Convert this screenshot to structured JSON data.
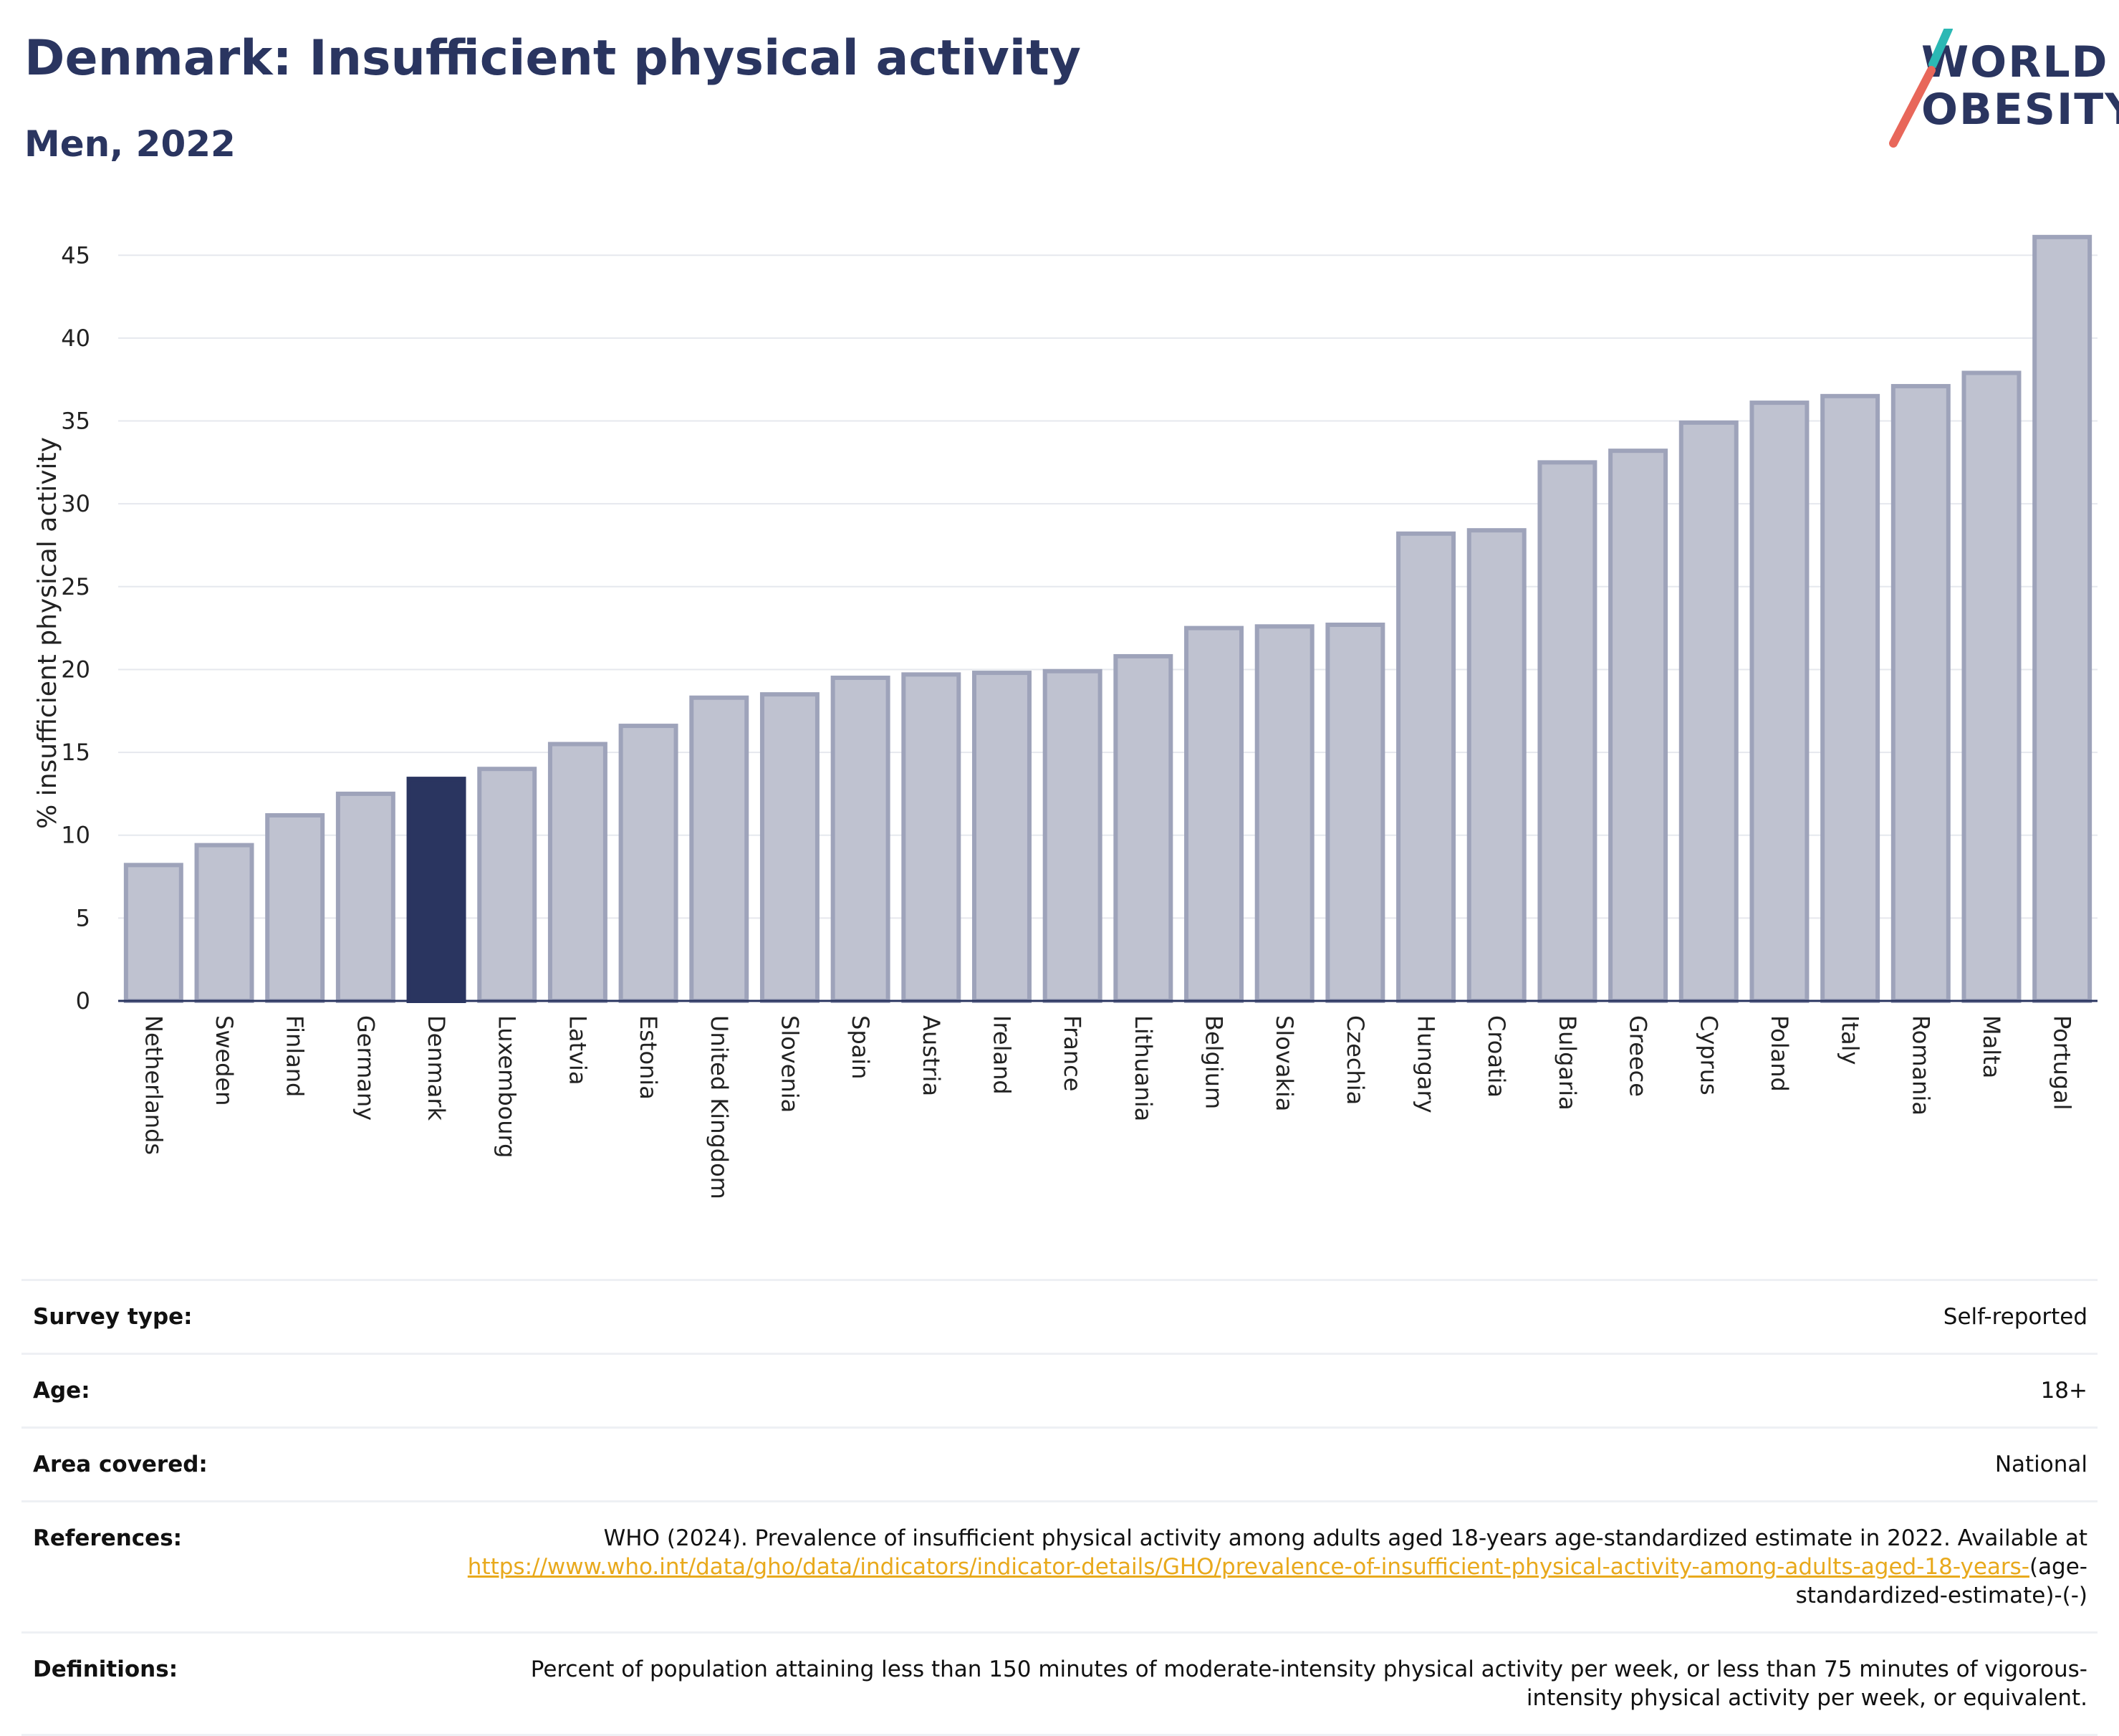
{
  "header": {
    "title": "Denmark: Insufficient physical activity",
    "subtitle": "Men, 2022"
  },
  "logo": {
    "line1": "WORLD",
    "line2": "OBESITY"
  },
  "colors": {
    "highlight": "#2a3560",
    "bar_fill": "#bfc2d0",
    "bar_stroke": "#9ea3ba",
    "slash_teal": "#2bb8b4",
    "slash_coral": "#e8675a",
    "link": "#e8a91c"
  },
  "chart_data": {
    "type": "bar",
    "ylabel": "% insufficient physical activity",
    "ylim": [
      0,
      47
    ],
    "yticks": [
      0,
      5,
      10,
      15,
      20,
      25,
      30,
      35,
      40,
      45
    ],
    "highlight": "Denmark",
    "categories": [
      "Netherlands",
      "Sweden",
      "Finland",
      "Germany",
      "Denmark",
      "Luxembourg",
      "Latvia",
      "Estonia",
      "United Kingdom",
      "Slovenia",
      "Spain",
      "Austria",
      "Ireland",
      "France",
      "Lithuania",
      "Belgium",
      "Slovakia",
      "Czechia",
      "Hungary",
      "Croatia",
      "Bulgaria",
      "Greece",
      "Cyprus",
      "Poland",
      "Italy",
      "Romania",
      "Malta",
      "Portugal"
    ],
    "values": [
      8.2,
      9.4,
      11.2,
      12.5,
      13.4,
      14.0,
      15.5,
      16.6,
      18.3,
      18.5,
      19.5,
      19.7,
      19.8,
      19.9,
      20.8,
      22.5,
      22.6,
      22.7,
      28.2,
      28.4,
      32.5,
      33.2,
      34.9,
      36.1,
      36.5,
      37.1,
      37.9,
      46.1
    ],
    "grid": true
  },
  "info": {
    "survey_label": "Survey type:",
    "survey_value": "Self-reported",
    "age_label": "Age:",
    "age_value": "18+",
    "area_label": "Area covered:",
    "area_value": "National",
    "ref_label": "References:",
    "ref_text": "WHO (2024). Prevalence of insufficient physical activity among adults aged 18-years age-standardized estimate in 2022. Available at ",
    "ref_link": "https://www.who.int/data/gho/data/indicators/indicator-details/GHO/prevalence-of-insufficient-physical-activity-among-adults-aged-18-years-",
    "ref_suffix": "(age-standardized-estimate)-(-)",
    "def_label": "Definitions:",
    "def_value": "Percent of population attaining less than 150 minutes of moderate-intensity physical activity per week, or less than 75 minutes of vigorous-intensity physical activity per week, or equivalent."
  }
}
